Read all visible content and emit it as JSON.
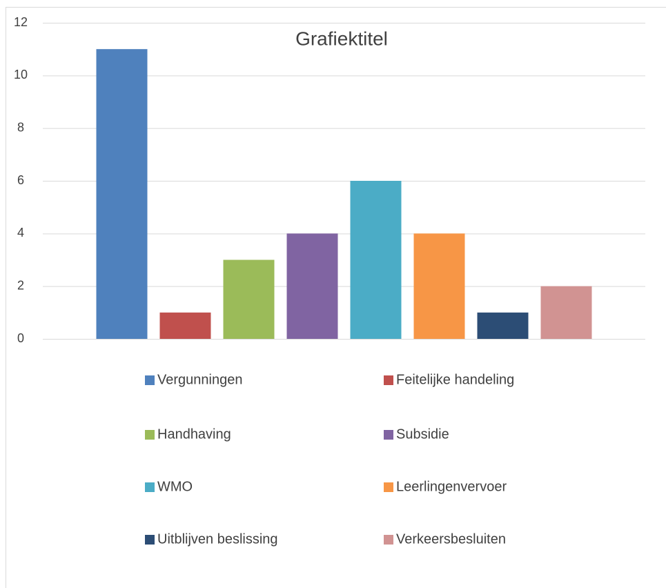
{
  "chart_data": {
    "type": "bar",
    "title": "Grafiektitel",
    "categories": [
      null
    ],
    "series": [
      {
        "name": "Vergunningen",
        "color": "#4f81bd",
        "values": [
          11
        ]
      },
      {
        "name": "Feitelijke handeling",
        "color": "#c0504d",
        "values": [
          1
        ]
      },
      {
        "name": "Handhaving",
        "color": "#9bbb59",
        "values": [
          3
        ]
      },
      {
        "name": "Subsidie",
        "color": "#8064a2",
        "values": [
          4
        ]
      },
      {
        "name": "WMO",
        "color": "#4bacc6",
        "values": [
          6
        ]
      },
      {
        "name": "Leerlingenvervoer",
        "color": "#f79646",
        "values": [
          4
        ]
      },
      {
        "name": "Uitblijven beslissing",
        "color": "#2c4d75",
        "values": [
          1
        ]
      },
      {
        "name": "Verkeersbesluiten",
        "color": "#d19392",
        "values": [
          2
        ]
      }
    ],
    "ylim": [
      0,
      12
    ],
    "yticks": [
      0,
      2,
      4,
      6,
      8,
      10,
      12
    ],
    "grid": true,
    "legend": "bottom"
  }
}
